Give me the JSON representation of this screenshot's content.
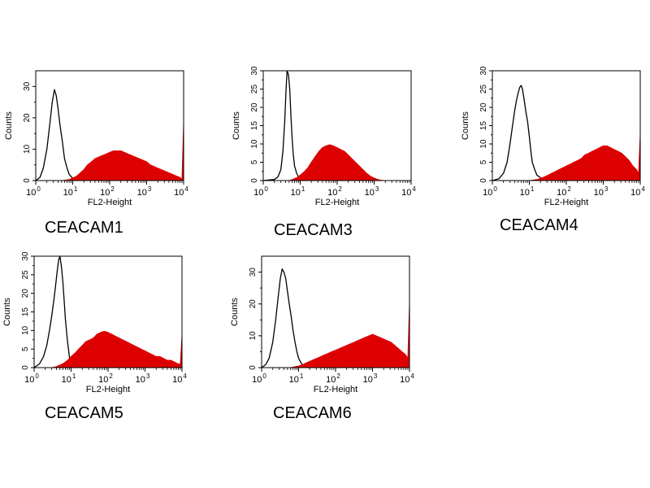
{
  "chart_data": [
    {
      "type": "area",
      "title": "CEACAM1",
      "xlabel": "FL2-Height",
      "ylabel": "Counts",
      "x_scale": "log",
      "xlim": [
        1,
        10000
      ],
      "ylim": [
        0,
        35
      ],
      "x_ticks": [
        {
          "base": "10",
          "exp": "0"
        },
        {
          "base": "10",
          "exp": "1"
        },
        {
          "base": "10",
          "exp": "2"
        },
        {
          "base": "10",
          "exp": "3"
        },
        {
          "base": "10",
          "exp": "4"
        }
      ],
      "y_ticks": [
        "0",
        "10",
        "20",
        "30"
      ],
      "y_tick_values": [
        0,
        10,
        20,
        30
      ],
      "series": [
        {
          "style": "outline",
          "color": "#000000",
          "x": [
            1,
            1.3,
            1.6,
            2,
            2.4,
            2.8,
            3.2,
            3.6,
            4,
            4.6,
            5.3,
            6,
            7,
            8,
            9.5,
            11,
            13,
            16,
            20
          ],
          "y": [
            0,
            1,
            4,
            10,
            18,
            25,
            29,
            27,
            23,
            17,
            12,
            7,
            4,
            2,
            1,
            0.5,
            0.3,
            0.1,
            0
          ]
        },
        {
          "style": "filled",
          "color": "#dd0000",
          "x": [
            1,
            5,
            8,
            10,
            13,
            16,
            20,
            25,
            32,
            40,
            50,
            63,
            80,
            100,
            126,
            158,
            200,
            251,
            316,
            398,
            501,
            631,
            794,
            1000,
            1259,
            1585,
            1995,
            2512,
            3162,
            3981,
            5012,
            6310,
            7943,
            9000,
            10000
          ],
          "y": [
            0,
            0,
            0.3,
            0.8,
            1.5,
            2.5,
            3.5,
            5,
            6,
            7,
            7.5,
            8,
            8.5,
            9,
            9.5,
            9.5,
            9.5,
            9,
            8.5,
            8,
            7.5,
            7,
            6.5,
            6,
            5,
            4.5,
            4,
            3.5,
            3,
            2.5,
            2,
            1.5,
            1,
            0.5,
            19
          ]
        }
      ]
    },
    {
      "type": "area",
      "title": "CEACAM3",
      "xlabel": "FL2-Height",
      "ylabel": "Counts",
      "x_scale": "log",
      "xlim": [
        1,
        10000
      ],
      "ylim": [
        0,
        30
      ],
      "x_ticks": [
        {
          "base": "10",
          "exp": "0"
        },
        {
          "base": "10",
          "exp": "1"
        },
        {
          "base": "10",
          "exp": "2"
        },
        {
          "base": "10",
          "exp": "3"
        },
        {
          "base": "10",
          "exp": "4"
        }
      ],
      "y_ticks": [
        "0",
        "5",
        "10",
        "15",
        "20",
        "25",
        "30"
      ],
      "y_tick_values": [
        0,
        5,
        10,
        15,
        20,
        25,
        30
      ],
      "series": [
        {
          "style": "outline",
          "color": "#000000",
          "x": [
            1,
            2,
            2.5,
            3,
            3.4,
            3.8,
            4.1,
            4.4,
            4.8,
            5.2,
            5.6,
            6,
            6.5,
            7,
            8,
            9,
            10,
            12,
            15
          ],
          "y": [
            0,
            0.3,
            1,
            3,
            8,
            16,
            24,
            30,
            29,
            25,
            18,
            12,
            7,
            4,
            2,
            1,
            0.5,
            0.2,
            0
          ]
        },
        {
          "style": "filled",
          "color": "#dd0000",
          "x": [
            1,
            5,
            6,
            8,
            10,
            13,
            16,
            20,
            25,
            32,
            40,
            50,
            63,
            79,
            100,
            126,
            158,
            200,
            251,
            316,
            398,
            501,
            631,
            794,
            1000,
            1259,
            1585,
            2000,
            2512,
            10000
          ],
          "y": [
            0,
            0,
            0.3,
            0.8,
            1.5,
            2.5,
            3.5,
            5,
            6.5,
            8,
            9,
            9.5,
            9.8,
            9.5,
            9,
            8.5,
            8,
            7,
            6,
            5,
            4,
            3,
            2,
            1.2,
            0.7,
            0.3,
            0.1,
            0,
            0,
            0
          ]
        }
      ]
    },
    {
      "type": "area",
      "title": "CEACAM4",
      "xlabel": "FL2-Height",
      "ylabel": "Counts",
      "x_scale": "log",
      "xlim": [
        1,
        10000
      ],
      "ylim": [
        0,
        30
      ],
      "x_ticks": [
        {
          "base": "10",
          "exp": "0"
        },
        {
          "base": "10",
          "exp": "1"
        },
        {
          "base": "10",
          "exp": "2"
        },
        {
          "base": "10",
          "exp": "3"
        },
        {
          "base": "10",
          "exp": "4"
        }
      ],
      "y_ticks": [
        "0",
        "5",
        "10",
        "15",
        "20",
        "25",
        "30"
      ],
      "y_tick_values": [
        0,
        5,
        10,
        15,
        20,
        25,
        30
      ],
      "series": [
        {
          "style": "outline",
          "color": "#000000",
          "x": [
            1,
            1.5,
            2,
            2.5,
            3,
            3.5,
            4,
            4.5,
            5,
            5.5,
            6,
            6.5,
            7,
            7.5,
            8,
            9,
            10,
            11,
            12,
            14,
            16,
            20,
            25,
            30
          ],
          "y": [
            0,
            0.5,
            2,
            5,
            10,
            15,
            19,
            22,
            24,
            25.5,
            26,
            25,
            23,
            21,
            19,
            16,
            12,
            8,
            5,
            3,
            1.5,
            0.8,
            0.3,
            0
          ]
        },
        {
          "style": "filled",
          "color": "#dd0000",
          "x": [
            1,
            10,
            16,
            20,
            25,
            32,
            40,
            50,
            63,
            79,
            100,
            126,
            158,
            200,
            251,
            316,
            398,
            501,
            631,
            794,
            1000,
            1259,
            1585,
            1995,
            2512,
            3162,
            3981,
            5012,
            6310,
            7943,
            9000,
            10000
          ],
          "y": [
            0,
            0,
            0.3,
            0.6,
            1,
            1.5,
            2,
            2.5,
            3,
            3.5,
            4,
            4.5,
            5,
            5.5,
            6,
            7,
            7.5,
            8,
            8.5,
            9,
            9.5,
            9.5,
            9,
            8.5,
            8,
            7.5,
            6.5,
            5.5,
            4,
            3,
            2,
            13
          ]
        }
      ]
    },
    {
      "type": "area",
      "title": "CEACAM5",
      "xlabel": "FL2-Height",
      "ylabel": "Counts",
      "x_scale": "log",
      "xlim": [
        1,
        10000
      ],
      "ylim": [
        0,
        30
      ],
      "x_ticks": [
        {
          "base": "10",
          "exp": "0"
        },
        {
          "base": "10",
          "exp": "1"
        },
        {
          "base": "10",
          "exp": "2"
        },
        {
          "base": "10",
          "exp": "3"
        },
        {
          "base": "10",
          "exp": "4"
        }
      ],
      "y_ticks": [
        "0",
        "5",
        "10",
        "15",
        "20",
        "25",
        "30"
      ],
      "y_tick_values": [
        0,
        5,
        10,
        15,
        20,
        25,
        30
      ],
      "series": [
        {
          "style": "outline",
          "color": "#000000",
          "x": [
            1,
            1.4,
            1.8,
            2.2,
            2.6,
            3,
            3.4,
            3.8,
            4.2,
            4.6,
            5,
            5.5,
            6,
            6.5,
            7,
            8,
            9,
            10,
            12
          ],
          "y": [
            0,
            1,
            3,
            6,
            10,
            14,
            18,
            22,
            26,
            29,
            30,
            27,
            23,
            18,
            13,
            7,
            3,
            1,
            0
          ]
        },
        {
          "style": "filled",
          "color": "#dd0000",
          "x": [
            1,
            3,
            4,
            5,
            6.3,
            8,
            10,
            13,
            16,
            20,
            25,
            32,
            40,
            50,
            63,
            79,
            100,
            126,
            158,
            200,
            251,
            316,
            398,
            501,
            631,
            794,
            1000,
            1259,
            1585,
            1995,
            2512,
            3162,
            3981,
            5012,
            6310,
            7943,
            9000,
            10000
          ],
          "y": [
            0,
            0,
            0.3,
            0.7,
            1.2,
            2,
            3,
            4,
            5,
            6,
            7,
            7.5,
            8,
            9,
            9.5,
            9.8,
            9.5,
            9,
            8.5,
            8,
            7.5,
            7,
            6.5,
            6,
            5.5,
            5,
            4.5,
            4,
            3.5,
            3,
            3,
            2.5,
            2,
            2,
            1.5,
            1,
            1,
            9
          ]
        }
      ]
    },
    {
      "type": "area",
      "title": "CEACAM6",
      "xlabel": "FL2-Height",
      "ylabel": "Counts",
      "x_scale": "log",
      "xlim": [
        1,
        10000
      ],
      "ylim": [
        0,
        35
      ],
      "x_ticks": [
        {
          "base": "10",
          "exp": "0"
        },
        {
          "base": "10",
          "exp": "1"
        },
        {
          "base": "10",
          "exp": "2"
        },
        {
          "base": "10",
          "exp": "3"
        },
        {
          "base": "10",
          "exp": "4"
        }
      ],
      "y_ticks": [
        "0",
        "10",
        "20",
        "30"
      ],
      "y_tick_values": [
        0,
        10,
        20,
        30
      ],
      "series": [
        {
          "style": "outline",
          "color": "#000000",
          "x": [
            1,
            1.3,
            1.6,
            2,
            2.4,
            2.8,
            3.2,
            3.6,
            4,
            4.5,
            5,
            5.6,
            6.3,
            7,
            8,
            9,
            10,
            11,
            12.5,
            14,
            16,
            20
          ],
          "y": [
            0,
            1,
            3,
            8,
            15,
            22,
            28,
            31,
            30,
            28,
            24,
            20,
            16,
            12,
            8,
            5,
            3,
            2,
            1,
            0.5,
            0.2,
            0
          ]
        },
        {
          "style": "filled",
          "color": "#dd0000",
          "x": [
            1,
            6,
            8,
            10,
            13,
            16,
            20,
            25,
            32,
            40,
            50,
            63,
            79,
            100,
            126,
            158,
            200,
            251,
            316,
            398,
            501,
            631,
            794,
            1000,
            1259,
            1585,
            1995,
            2512,
            3162,
            3981,
            5012,
            6310,
            7943,
            9000,
            10000
          ],
          "y": [
            0,
            0,
            0.3,
            0.5,
            1,
            1.5,
            2,
            2.5,
            3,
            3.5,
            4,
            4.5,
            5,
            5.5,
            6,
            6.5,
            7,
            7.5,
            8,
            8.5,
            9,
            9.5,
            10,
            10.5,
            10,
            9.5,
            9,
            8.5,
            8,
            7,
            6,
            5,
            4,
            3,
            21
          ]
        }
      ]
    }
  ]
}
